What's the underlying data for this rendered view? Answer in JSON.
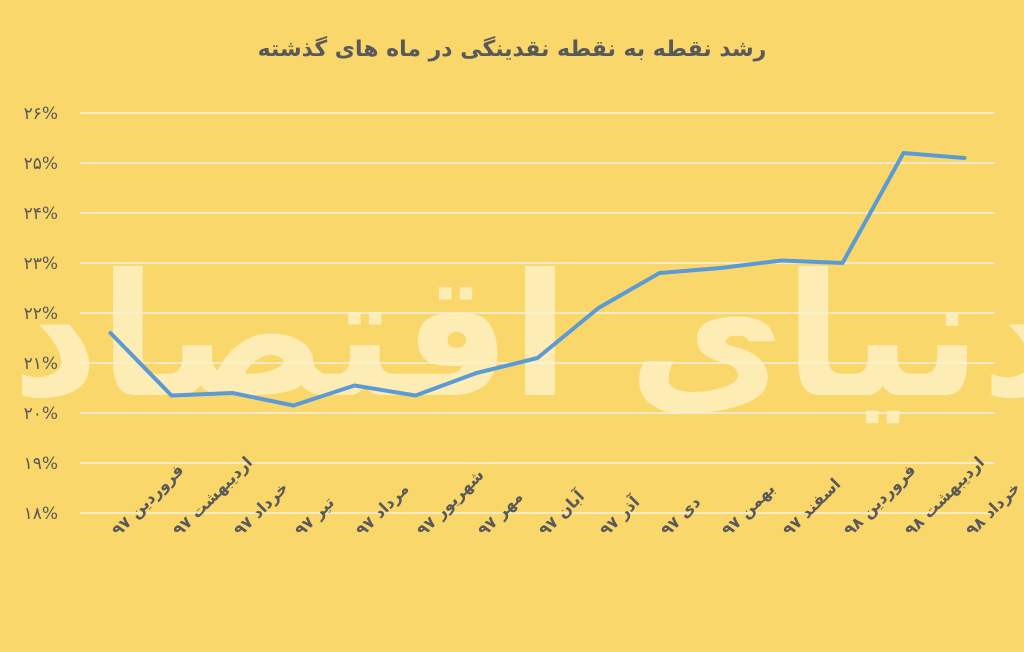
{
  "watermark": "دنیای اقتصاد",
  "chart_data": {
    "type": "line",
    "title": "رشد نقطه به نقطه نقدینگی در ماه های گذشته",
    "categories": [
      "فروردین ۹۷",
      "اردیبهشت ۹۷",
      "خرداد ۹۷",
      "تیر ۹۷",
      "مرداد ۹۷",
      "شهریور ۹۷",
      "مهر ۹۷",
      "آبان ۹۷",
      "آذر ۹۷",
      "دی ۹۷",
      "بهمن ۹۷",
      "اسفند ۹۷",
      "فروردین ۹۸",
      "اردیبهشت ۹۸",
      "خرداد ۹۸"
    ],
    "series": [
      {
        "values": [
          21.6,
          20.35,
          20.4,
          20.15,
          20.55,
          20.35,
          20.8,
          21.1,
          22.1,
          22.8,
          22.9,
          23.05,
          23.0,
          25.2,
          25.1
        ],
        "color": "#5b9bd5"
      }
    ],
    "ylim": [
      18,
      26
    ],
    "yticks": [
      "۱۸%",
      "۱۹%",
      "۲۰%",
      "۲۱%",
      "۲۲%",
      "۲۳%",
      "۲۴%",
      "۲۵%",
      "۲۶%"
    ],
    "grid": true,
    "legend": "none"
  }
}
